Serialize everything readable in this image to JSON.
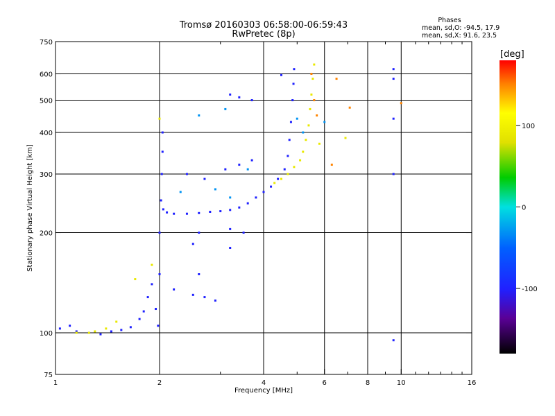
{
  "chart_data": {
    "type": "scatter",
    "title": "Tromsø 20160303 06:58:00-06:59:43",
    "subtitle": "RwPretec (8p)",
    "stats": {
      "heading": "Phases",
      "line_o": "mean, sd,O: -94.5, 17.9",
      "line_x": "mean, sd,X:  91.6, 23.5"
    },
    "xlabel": "Frequency [MHz]",
    "ylabel": "Stationary phase Virtual Height [km]",
    "xscale": "log",
    "yscale": "log",
    "xlim": [
      1,
      16
    ],
    "ylim": [
      75,
      750
    ],
    "x_ticks": [
      1,
      2,
      4,
      6,
      8,
      10,
      16
    ],
    "y_ticks": [
      75,
      100,
      200,
      300,
      400,
      500,
      600,
      750
    ],
    "x_grid": [
      2,
      4,
      6,
      8,
      10
    ],
    "y_grid": [
      100,
      200,
      300,
      400,
      500,
      600
    ],
    "colorbar": {
      "label": "[deg]",
      "range": [
        -180,
        180
      ],
      "ticks": [
        100,
        0,
        -100
      ]
    },
    "series": [
      {
        "name": "O-mode (blue, phase ~ -100 deg)",
        "phase": -100,
        "points": [
          [
            1.03,
            103
          ],
          [
            1.1,
            105
          ],
          [
            1.15,
            101
          ],
          [
            1.25,
            100
          ],
          [
            1.35,
            99
          ],
          [
            1.45,
            101
          ],
          [
            1.55,
            102
          ],
          [
            1.65,
            104
          ],
          [
            1.75,
            110
          ],
          [
            1.8,
            116
          ],
          [
            1.85,
            128
          ],
          [
            1.9,
            140
          ],
          [
            1.95,
            118
          ],
          [
            1.98,
            105
          ],
          [
            2.0,
            150
          ],
          [
            2.0,
            200
          ],
          [
            2.02,
            250
          ],
          [
            2.03,
            300
          ],
          [
            2.04,
            350
          ],
          [
            2.04,
            400
          ],
          [
            2.05,
            235
          ],
          [
            2.1,
            230
          ],
          [
            2.2,
            228
          ],
          [
            2.4,
            228
          ],
          [
            2.6,
            229
          ],
          [
            2.8,
            231
          ],
          [
            3.0,
            232
          ],
          [
            3.2,
            234
          ],
          [
            3.4,
            238
          ],
          [
            3.6,
            245
          ],
          [
            3.8,
            255
          ],
          [
            4.0,
            265
          ],
          [
            4.2,
            275
          ],
          [
            4.4,
            290
          ],
          [
            4.6,
            310
          ],
          [
            4.7,
            340
          ],
          [
            4.75,
            380
          ],
          [
            4.8,
            430
          ],
          [
            4.85,
            500
          ],
          [
            4.88,
            560
          ],
          [
            4.9,
            620
          ],
          [
            2.4,
            300
          ],
          [
            2.7,
            290
          ],
          [
            3.1,
            310
          ],
          [
            3.4,
            320
          ],
          [
            3.7,
            330
          ],
          [
            2.6,
            200
          ],
          [
            3.2,
            205
          ],
          [
            3.5,
            200
          ],
          [
            2.5,
            185
          ],
          [
            3.2,
            180
          ],
          [
            2.5,
            130
          ],
          [
            2.7,
            128
          ],
          [
            2.9,
            125
          ],
          [
            2.2,
            135
          ],
          [
            2.6,
            150
          ],
          [
            3.2,
            520
          ],
          [
            3.4,
            510
          ],
          [
            3.7,
            500
          ],
          [
            4.5,
            595
          ],
          [
            9.5,
            620
          ],
          [
            9.5,
            580
          ],
          [
            9.5,
            440
          ],
          [
            9.5,
            300
          ],
          [
            9.5,
            95
          ]
        ]
      },
      {
        "name": "X-mode (yellow/orange, phase ~ +90 deg)",
        "phase": 90,
        "points": [
          [
            4.3,
            282
          ],
          [
            4.5,
            290
          ],
          [
            4.7,
            300
          ],
          [
            4.9,
            315
          ],
          [
            5.1,
            330
          ],
          [
            5.2,
            350
          ],
          [
            5.3,
            380
          ],
          [
            5.4,
            420
          ],
          [
            5.45,
            470
          ],
          [
            5.5,
            520
          ],
          [
            5.55,
            580
          ],
          [
            5.6,
            640
          ],
          [
            1.15,
            100
          ],
          [
            1.25,
            100
          ],
          [
            1.3,
            101
          ],
          [
            1.4,
            103
          ],
          [
            1.5,
            108
          ],
          [
            1.7,
            145
          ],
          [
            1.9,
            160
          ],
          [
            2.0,
            440
          ],
          [
            5.8,
            370
          ],
          [
            6.9,
            385
          ]
        ]
      },
      {
        "name": "Red/orange points (phase ~ +150 deg)",
        "phase": 150,
        "points": [
          [
            5.5,
            600
          ],
          [
            5.6,
            500
          ],
          [
            5.7,
            450
          ],
          [
            6.3,
            320
          ],
          [
            7.1,
            475
          ],
          [
            10.0,
            490
          ],
          [
            6.5,
            580
          ]
        ]
      },
      {
        "name": "Cyan/green points (phase ~ -30 deg)",
        "phase": -30,
        "points": [
          [
            2.9,
            270
          ],
          [
            3.2,
            255
          ],
          [
            3.6,
            310
          ],
          [
            5.0,
            440
          ],
          [
            5.2,
            400
          ],
          [
            6.0,
            430
          ],
          [
            2.6,
            450
          ],
          [
            3.1,
            470
          ],
          [
            2.3,
            265
          ]
        ]
      }
    ]
  }
}
